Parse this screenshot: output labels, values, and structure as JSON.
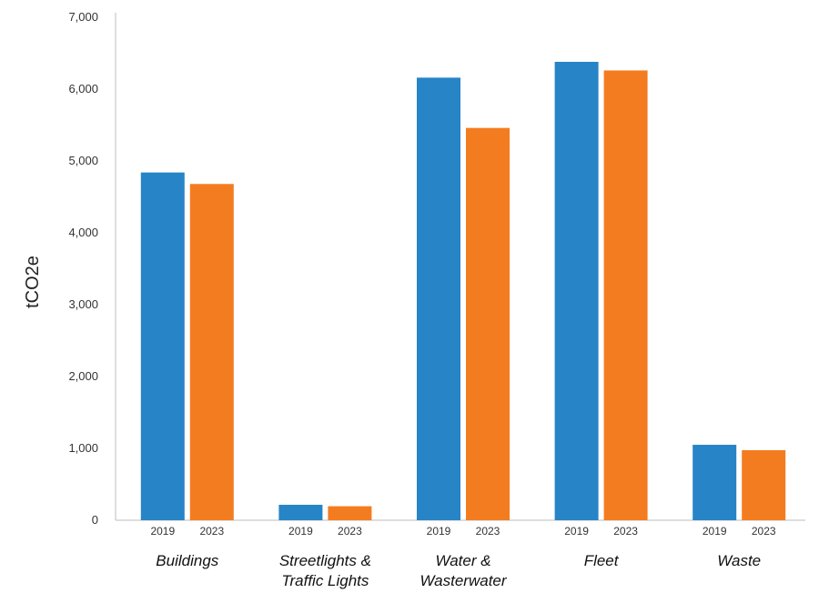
{
  "chart_data": {
    "type": "bar",
    "title": "",
    "xlabel": "",
    "ylabel": "tCO2e",
    "ylim": [
      0,
      7000
    ],
    "yticks": [
      0,
      1000,
      2000,
      3000,
      4000,
      5000,
      6000,
      7000
    ],
    "ytick_labels": [
      "0",
      "1,000",
      "2,000",
      "3,000",
      "4,000",
      "5,000",
      "6,000",
      "7,000"
    ],
    "grid": false,
    "legend": "none",
    "categories": [
      {
        "lines": [
          "Buildings"
        ]
      },
      {
        "lines": [
          "Streetlights &",
          "Traffic Lights"
        ]
      },
      {
        "lines": [
          "Water &",
          "Wasterwater"
        ]
      },
      {
        "lines": [
          "Fleet"
        ]
      },
      {
        "lines": [
          "Waste"
        ]
      }
    ],
    "series": [
      {
        "label": "2019",
        "color": "#2784C7",
        "values": [
          4840,
          215,
          6160,
          6380,
          1050
        ]
      },
      {
        "label": "2023",
        "color": "#F47C20",
        "values": [
          4680,
          195,
          5460,
          6260,
          975
        ]
      }
    ]
  }
}
